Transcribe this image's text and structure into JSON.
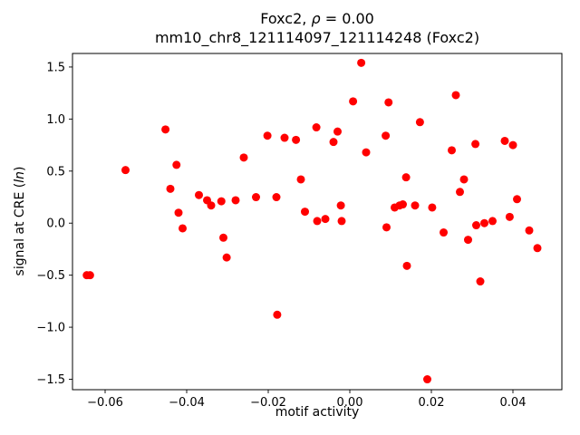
{
  "chart_data": {
    "type": "scatter",
    "title": "Foxc2, ρ = 0.00",
    "title_line1": {
      "pre": "Foxc2, ",
      "rho": "ρ",
      "post": " = 0.00"
    },
    "subtitle": "mm10_chr8_121114097_121114248 (Foxc2)",
    "xlabel": "motif activity",
    "ylabel": "signal at CRE (ln)",
    "ylabel_parts": {
      "pre": "signal at CRE (",
      "italic": "ln",
      "post": ")"
    },
    "marker_color": "#ff0000",
    "axes_color": "#000000",
    "grid": false,
    "legend": "none",
    "xlim": [
      -0.068,
      0.052
    ],
    "ylim": [
      -1.6,
      1.63
    ],
    "x_ticks": {
      "values": [
        -0.06,
        -0.04,
        -0.02,
        0.0,
        0.02,
        0.04
      ],
      "labels": [
        "−0.06",
        "−0.04",
        "−0.02",
        "0.00",
        "0.02",
        "0.04"
      ]
    },
    "y_ticks": {
      "values": [
        -1.5,
        -1.0,
        -0.5,
        0.0,
        0.5,
        1.0,
        1.5
      ],
      "labels": [
        "−1.5",
        "−1.0",
        "−0.5",
        "0.0",
        "0.5",
        "1.0",
        "1.5"
      ]
    },
    "points": [
      [
        -0.0645,
        -0.5
      ],
      [
        -0.0637,
        -0.5
      ],
      [
        -0.055,
        0.51
      ],
      [
        -0.0452,
        0.9
      ],
      [
        -0.044,
        0.33
      ],
      [
        -0.0425,
        0.56
      ],
      [
        -0.042,
        0.1
      ],
      [
        -0.041,
        -0.05
      ],
      [
        -0.037,
        0.27
      ],
      [
        -0.035,
        0.22
      ],
      [
        -0.034,
        0.17
      ],
      [
        -0.0315,
        0.21
      ],
      [
        -0.031,
        -0.14
      ],
      [
        -0.0302,
        -0.33
      ],
      [
        -0.028,
        0.22
      ],
      [
        -0.026,
        0.63
      ],
      [
        -0.023,
        0.25
      ],
      [
        -0.0202,
        0.84
      ],
      [
        -0.018,
        0.25
      ],
      [
        -0.0178,
        -0.88
      ],
      [
        -0.016,
        0.82
      ],
      [
        -0.0132,
        0.8
      ],
      [
        -0.012,
        0.42
      ],
      [
        -0.011,
        0.11
      ],
      [
        -0.0082,
        0.92
      ],
      [
        -0.008,
        0.02
      ],
      [
        -0.006,
        0.04
      ],
      [
        -0.004,
        0.78
      ],
      [
        -0.003,
        0.88
      ],
      [
        -0.0022,
        0.17
      ],
      [
        -0.002,
        0.02
      ],
      [
        0.0008,
        1.17
      ],
      [
        0.0028,
        1.54
      ],
      [
        0.004,
        0.68
      ],
      [
        0.0088,
        0.84
      ],
      [
        0.0095,
        1.16
      ],
      [
        0.009,
        -0.04
      ],
      [
        0.011,
        0.15
      ],
      [
        0.0122,
        0.17
      ],
      [
        0.013,
        0.18
      ],
      [
        0.0138,
        0.44
      ],
      [
        0.014,
        -0.41
      ],
      [
        0.016,
        0.17
      ],
      [
        0.0172,
        0.97
      ],
      [
        0.019,
        -1.5
      ],
      [
        0.0202,
        0.15
      ],
      [
        0.023,
        -0.09
      ],
      [
        0.025,
        0.7
      ],
      [
        0.026,
        1.23
      ],
      [
        0.027,
        0.3
      ],
      [
        0.028,
        0.42
      ],
      [
        0.029,
        -0.16
      ],
      [
        0.0308,
        0.76
      ],
      [
        0.031,
        -0.02
      ],
      [
        0.032,
        -0.56
      ],
      [
        0.033,
        0.0
      ],
      [
        0.035,
        0.02
      ],
      [
        0.038,
        0.79
      ],
      [
        0.0392,
        0.06
      ],
      [
        0.04,
        0.75
      ],
      [
        0.041,
        0.23
      ],
      [
        0.044,
        -0.07
      ],
      [
        0.046,
        -0.24
      ]
    ]
  }
}
